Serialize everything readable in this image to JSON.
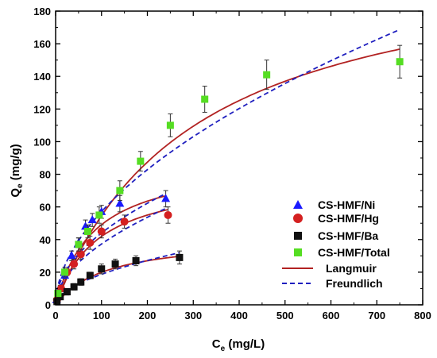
{
  "chart_data": {
    "type": "scatter",
    "xlabel": "C",
    "xlabel_sub": "e",
    "xlabel_unit": " (mg/L)",
    "ylabel": "Q",
    "ylabel_sub": "e",
    "ylabel_unit": " (mg/g)",
    "xlim": [
      0,
      800
    ],
    "ylim": [
      0,
      180
    ],
    "xticks": [
      0,
      100,
      200,
      300,
      400,
      500,
      600,
      700,
      800
    ],
    "yticks": [
      0,
      20,
      40,
      60,
      80,
      100,
      120,
      140,
      160,
      180
    ],
    "grid": false,
    "legend_position": "bottom-right",
    "colors": {
      "ni": "#1a1aff",
      "hg": "#d42020",
      "ba": "#111111",
      "total": "#55dd22",
      "langmuir": "#b22222",
      "freundlich": "#1f1fbf"
    },
    "series": [
      {
        "name": "CS-HMF/Ni",
        "marker": "triangle",
        "color": "#1a1aff",
        "x": [
          2,
          10,
          20,
          35,
          50,
          65,
          80,
          100,
          140,
          240
        ],
        "y": [
          3,
          10,
          18,
          30,
          38,
          48,
          52,
          57,
          62,
          65
        ],
        "err": [
          1,
          2,
          2,
          3,
          3,
          4,
          4,
          4,
          5,
          5
        ]
      },
      {
        "name": "CS-HMF/Hg",
        "marker": "circle",
        "color": "#d42020",
        "x": [
          3,
          12,
          25,
          40,
          55,
          75,
          100,
          150,
          245
        ],
        "y": [
          3,
          10,
          20,
          25,
          31,
          38,
          45,
          51,
          55
        ],
        "err": [
          1,
          2,
          2,
          3,
          3,
          4,
          4,
          4,
          5
        ]
      },
      {
        "name": "CS-HMF/Ba",
        "marker": "square",
        "color": "#111111",
        "x": [
          3,
          10,
          25,
          40,
          55,
          75,
          100,
          130,
          175,
          270
        ],
        "y": [
          2,
          5,
          8,
          11,
          14,
          18,
          22,
          25,
          27,
          29
        ],
        "err": [
          1,
          1,
          2,
          2,
          2,
          2,
          3,
          3,
          3,
          4
        ]
      },
      {
        "name": "CS-HMF/Total",
        "marker": "square",
        "color": "#55dd22",
        "x": [
          5,
          20,
          50,
          70,
          95,
          140,
          185,
          250,
          325,
          460,
          750
        ],
        "y": [
          7,
          20,
          37,
          45,
          55,
          70,
          88,
          110,
          126,
          141,
          149
        ],
        "err": [
          2,
          3,
          4,
          4,
          5,
          6,
          6,
          7,
          8,
          9,
          10
        ]
      }
    ],
    "fits": [
      {
        "name": "Langmuir",
        "style": "solid",
        "color": "#b22222",
        "curves": [
          {
            "for": "CS-HMF/Ni",
            "x_max": 240,
            "qmax": 90,
            "K": 0.012
          },
          {
            "for": "CS-HMF/Hg",
            "x_max": 245,
            "qmax": 80,
            "K": 0.011
          },
          {
            "for": "CS-HMF/Ba",
            "x_max": 270,
            "qmax": 42,
            "K": 0.009
          },
          {
            "for": "CS-HMF/Total",
            "x_max": 750,
            "qmax": 220,
            "K": 0.0033
          }
        ]
      },
      {
        "name": "Freundlich",
        "style": "dashed",
        "color": "#1f1fbf",
        "curves": [
          {
            "for": "CS-HMF/Ni",
            "x_max": 240,
            "Kf": 4.4,
            "n": 2.0
          },
          {
            "for": "CS-HMF/Hg",
            "x_max": 245,
            "Kf": 3.3,
            "n": 1.9
          },
          {
            "for": "CS-HMF/Ba",
            "x_max": 270,
            "Kf": 1.55,
            "n": 1.85
          },
          {
            "for": "CS-HMF/Total",
            "x_max": 750,
            "Kf": 4.8,
            "n": 1.86
          }
        ]
      }
    ],
    "legend": [
      "CS-HMF/Ni",
      "CS-HMF/Hg",
      "CS-HMF/Ba",
      "CS-HMF/Total",
      "Langmuir",
      "Freundlich"
    ]
  }
}
